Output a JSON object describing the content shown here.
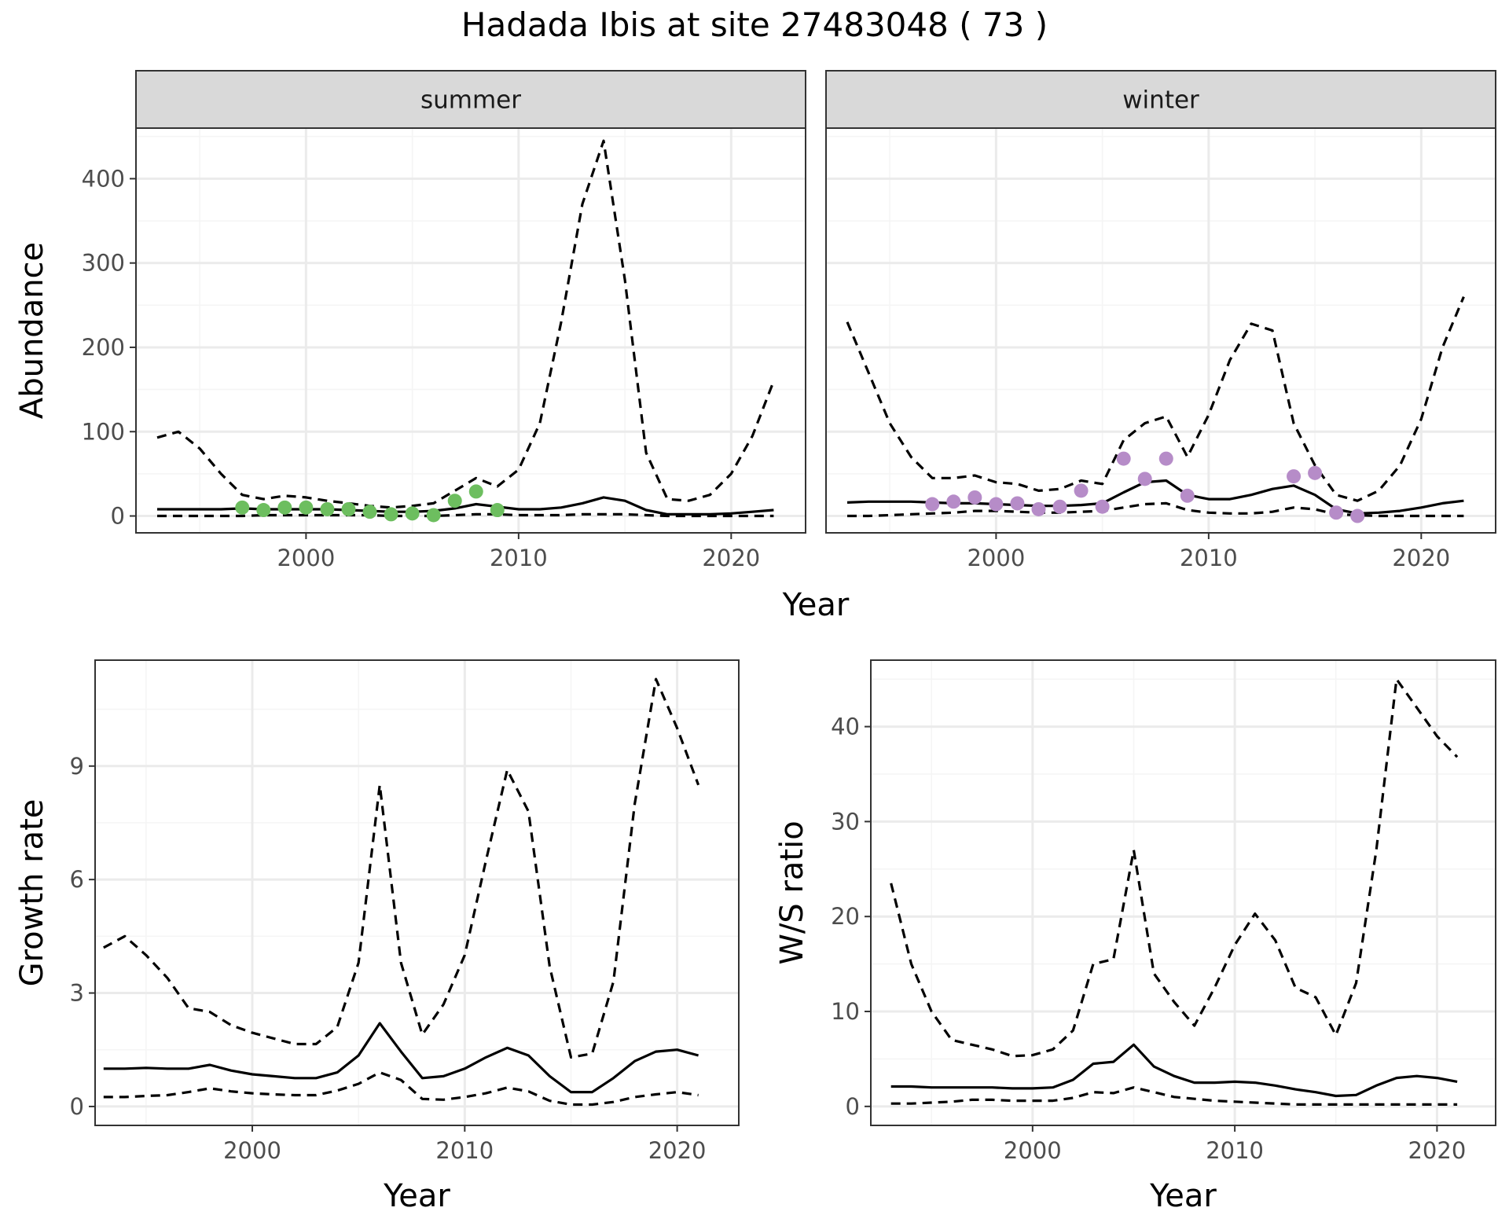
{
  "title": "Hadada Ibis at site 27483048 ( 73 )",
  "colors": {
    "summer_points": "#6DBE5F",
    "winter_points": "#B68CC8",
    "line": "#000000",
    "panel_border": "#333333",
    "strip_fill": "#D9D9D9",
    "grid_major": "#EBEBEB",
    "grid_minor": "#F5F5F5"
  },
  "chart_data": [
    {
      "type": "line",
      "panel": "summer",
      "strip_label": "summer",
      "xlabel": "Year",
      "ylabel": "Abundance",
      "xlim": [
        1992,
        2023.5
      ],
      "ylim": [
        -20,
        460
      ],
      "xticks": [
        2000,
        2010,
        2020
      ],
      "yticks": [
        0,
        100,
        200,
        300,
        400
      ],
      "x": [
        1993,
        1994,
        1995,
        1996,
        1997,
        1998,
        1999,
        2000,
        2001,
        2002,
        2003,
        2004,
        2005,
        2006,
        2007,
        2008,
        2009,
        2010,
        2011,
        2012,
        2013,
        2014,
        2015,
        2016,
        2017,
        2018,
        2019,
        2020,
        2021,
        2022
      ],
      "series": [
        {
          "role": "mean",
          "style": "solid",
          "values": [
            8,
            8,
            8,
            8,
            9,
            8,
            8,
            8,
            8,
            7,
            6,
            5,
            5,
            6,
            9,
            14,
            11,
            8,
            8,
            10,
            15,
            22,
            18,
            7,
            2,
            2,
            2,
            3,
            5,
            7
          ]
        },
        {
          "role": "upper",
          "style": "dashed",
          "values": [
            93,
            100,
            80,
            50,
            25,
            20,
            24,
            22,
            18,
            15,
            12,
            10,
            12,
            15,
            30,
            45,
            35,
            55,
            110,
            230,
            370,
            445,
            280,
            75,
            20,
            18,
            25,
            50,
            95,
            160
          ]
        },
        {
          "role": "lower",
          "style": "dashed",
          "values": [
            0,
            0,
            0,
            0,
            0,
            1,
            1,
            1,
            1,
            1,
            1,
            0,
            0,
            0,
            1,
            2,
            2,
            1,
            1,
            1,
            2,
            2,
            2,
            1,
            0,
            0,
            0,
            0,
            0,
            0
          ]
        }
      ],
      "points": {
        "x": [
          1997,
          1998,
          1999,
          2000,
          2001,
          2002,
          2003,
          2004,
          2005,
          2006,
          2007,
          2008,
          2009
        ],
        "y": [
          10,
          7,
          10,
          10,
          8,
          8,
          5,
          2,
          3,
          1,
          18,
          29,
          7
        ]
      }
    },
    {
      "type": "line",
      "panel": "winter",
      "strip_label": "winter",
      "xlabel": "Year",
      "ylabel": "Abundance",
      "xlim": [
        1992,
        2023.5
      ],
      "ylim": [
        -20,
        460
      ],
      "xticks": [
        2000,
        2010,
        2020
      ],
      "yticks": [
        0,
        100,
        200,
        300,
        400
      ],
      "x": [
        1993,
        1994,
        1995,
        1996,
        1997,
        1998,
        1999,
        2000,
        2001,
        2002,
        2003,
        2004,
        2005,
        2006,
        2007,
        2008,
        2009,
        2010,
        2011,
        2012,
        2013,
        2014,
        2015,
        2016,
        2017,
        2018,
        2019,
        2020,
        2021,
        2022
      ],
      "series": [
        {
          "role": "mean",
          "style": "solid",
          "values": [
            16,
            17,
            17,
            17,
            16,
            15,
            15,
            14,
            13,
            12,
            12,
            13,
            15,
            28,
            40,
            42,
            25,
            20,
            20,
            25,
            32,
            36,
            25,
            8,
            3,
            4,
            6,
            10,
            15,
            18
          ]
        },
        {
          "role": "upper",
          "style": "dashed",
          "values": [
            230,
            170,
            110,
            70,
            45,
            45,
            48,
            40,
            38,
            30,
            32,
            42,
            38,
            90,
            110,
            118,
            70,
            120,
            185,
            228,
            220,
            110,
            60,
            25,
            18,
            30,
            60,
            115,
            200,
            260
          ]
        },
        {
          "role": "lower",
          "style": "dashed",
          "values": [
            0,
            0,
            1,
            2,
            3,
            4,
            6,
            6,
            5,
            4,
            4,
            5,
            6,
            10,
            14,
            15,
            7,
            4,
            3,
            3,
            5,
            10,
            8,
            2,
            1,
            0,
            0,
            0,
            0,
            0
          ]
        }
      ],
      "points": {
        "x": [
          1997,
          1998,
          1999,
          2000,
          2001,
          2002,
          2003,
          2004,
          2005,
          2006,
          2007,
          2008,
          2009,
          2014,
          2015,
          2016,
          2017
        ],
        "y": [
          14,
          17,
          22,
          14,
          15,
          8,
          11,
          30,
          11,
          68,
          44,
          68,
          24,
          47,
          51,
          4,
          0
        ]
      }
    },
    {
      "type": "line",
      "panel": "growth",
      "xlabel": "Year",
      "ylabel": "Growth rate",
      "xlim": [
        1992.6,
        2022.9
      ],
      "ylim": [
        -0.5,
        11.8
      ],
      "xticks": [
        2000,
        2010,
        2020
      ],
      "yticks": [
        0,
        3,
        6,
        9
      ],
      "x": [
        1993,
        1994,
        1995,
        1996,
        1997,
        1998,
        1999,
        2000,
        2001,
        2002,
        2003,
        2004,
        2005,
        2006,
        2007,
        2008,
        2009,
        2010,
        2011,
        2012,
        2013,
        2014,
        2015,
        2016,
        2017,
        2018,
        2019,
        2020,
        2021
      ],
      "series": [
        {
          "role": "mean",
          "style": "solid",
          "values": [
            1.0,
            1.0,
            1.02,
            1.0,
            1.0,
            1.1,
            0.95,
            0.85,
            0.8,
            0.75,
            0.75,
            0.9,
            1.35,
            2.2,
            1.45,
            0.75,
            0.8,
            1.0,
            1.3,
            1.55,
            1.35,
            0.8,
            0.38,
            0.38,
            0.75,
            1.2,
            1.45,
            1.5,
            1.35
          ]
        },
        {
          "role": "upper",
          "style": "dashed",
          "values": [
            4.2,
            4.5,
            4.0,
            3.4,
            2.6,
            2.5,
            2.15,
            1.95,
            1.8,
            1.65,
            1.65,
            2.1,
            3.8,
            8.5,
            3.8,
            1.9,
            2.7,
            4.0,
            6.5,
            8.9,
            7.8,
            3.7,
            1.3,
            1.4,
            3.3,
            8.0,
            11.3,
            10.0,
            8.5
          ]
        },
        {
          "role": "lower",
          "style": "dashed",
          "values": [
            0.25,
            0.25,
            0.28,
            0.3,
            0.38,
            0.48,
            0.4,
            0.35,
            0.32,
            0.3,
            0.3,
            0.42,
            0.6,
            0.9,
            0.7,
            0.2,
            0.18,
            0.25,
            0.35,
            0.5,
            0.4,
            0.15,
            0.05,
            0.05,
            0.12,
            0.25,
            0.32,
            0.38,
            0.3
          ]
        }
      ]
    },
    {
      "type": "line",
      "panel": "ratio",
      "xlabel": "Year",
      "ylabel": "W/S ratio",
      "xlim": [
        1992,
        2022.9
      ],
      "ylim": [
        -2,
        47
      ],
      "xticks": [
        2000,
        2010,
        2020
      ],
      "yticks": [
        0,
        10,
        20,
        30,
        40
      ],
      "x": [
        1993,
        1994,
        1995,
        1996,
        1997,
        1998,
        1999,
        2000,
        2001,
        2002,
        2003,
        2004,
        2005,
        2006,
        2007,
        2008,
        2009,
        2010,
        2011,
        2012,
        2013,
        2014,
        2015,
        2016,
        2017,
        2018,
        2019,
        2020,
        2021
      ],
      "series": [
        {
          "role": "mean",
          "style": "solid",
          "values": [
            2.1,
            2.1,
            2.0,
            2.0,
            2.0,
            2.0,
            1.9,
            1.9,
            2.0,
            2.8,
            4.5,
            4.7,
            6.5,
            4.2,
            3.2,
            2.5,
            2.5,
            2.6,
            2.5,
            2.2,
            1.8,
            1.5,
            1.1,
            1.2,
            2.2,
            3.0,
            3.2,
            3.0,
            2.6
          ]
        },
        {
          "role": "upper",
          "style": "dashed",
          "values": [
            23.5,
            15,
            10,
            7,
            6.5,
            6,
            5.3,
            5.4,
            6,
            8,
            15,
            15.5,
            27,
            14,
            11,
            8.5,
            12.5,
            17,
            20.3,
            17.5,
            12.5,
            11.5,
            7.5,
            13,
            27,
            45,
            42,
            39,
            36.8
          ]
        },
        {
          "role": "lower",
          "style": "dashed",
          "values": [
            0.3,
            0.3,
            0.4,
            0.5,
            0.7,
            0.7,
            0.6,
            0.6,
            0.6,
            0.9,
            1.5,
            1.4,
            2.0,
            1.5,
            1.0,
            0.8,
            0.6,
            0.5,
            0.4,
            0.3,
            0.2,
            0.2,
            0.2,
            0.2,
            0.2,
            0.2,
            0.2,
            0.2,
            0.2
          ]
        }
      ]
    }
  ]
}
